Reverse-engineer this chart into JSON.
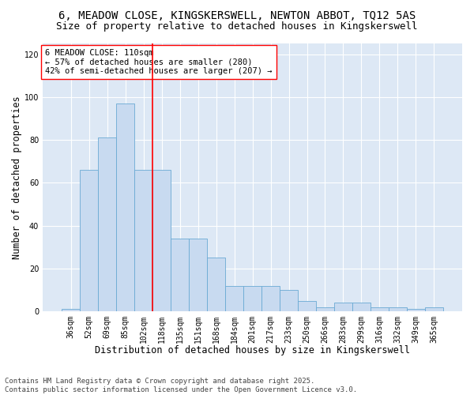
{
  "title_line1": "6, MEADOW CLOSE, KINGSKERSWELL, NEWTON ABBOT, TQ12 5AS",
  "title_line2": "Size of property relative to detached houses in Kingskerswell",
  "xlabel": "Distribution of detached houses by size in Kingskerswell",
  "ylabel": "Number of detached properties",
  "categories": [
    "36sqm",
    "52sqm",
    "69sqm",
    "85sqm",
    "102sqm",
    "118sqm",
    "135sqm",
    "151sqm",
    "168sqm",
    "184sqm",
    "201sqm",
    "217sqm",
    "233sqm",
    "250sqm",
    "266sqm",
    "283sqm",
    "299sqm",
    "316sqm",
    "332sqm",
    "349sqm",
    "365sqm"
  ],
  "values": [
    1,
    66,
    81,
    97,
    66,
    66,
    34,
    34,
    25,
    12,
    12,
    12,
    10,
    5,
    2,
    4,
    4,
    2,
    2,
    1,
    2
  ],
  "bar_color": "#c8daf0",
  "bar_edge_color": "#6aaad4",
  "vline_x_index": 4,
  "vline_color": "red",
  "annotation_text": "6 MEADOW CLOSE: 110sqm\n← 57% of detached houses are smaller (280)\n42% of semi-detached houses are larger (207) →",
  "annotation_box_color": "white",
  "annotation_box_edge": "red",
  "ylim": [
    0,
    125
  ],
  "yticks": [
    0,
    20,
    40,
    60,
    80,
    100,
    120
  ],
  "footer_line1": "Contains HM Land Registry data © Crown copyright and database right 2025.",
  "footer_line2": "Contains public sector information licensed under the Open Government Licence v3.0.",
  "plot_bg_color": "#dde8f5",
  "fig_bg_color": "#ffffff",
  "grid_color": "#ffffff",
  "title_fontsize": 10,
  "subtitle_fontsize": 9,
  "axis_label_fontsize": 8.5,
  "tick_fontsize": 7,
  "annotation_fontsize": 7.5,
  "footer_fontsize": 6.5
}
